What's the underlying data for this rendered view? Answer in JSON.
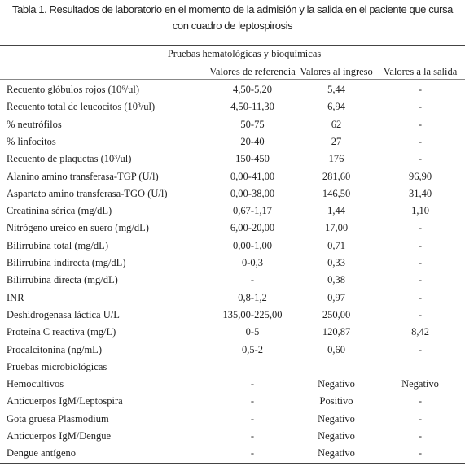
{
  "title": "Tabla 1. Resultados de laboratorio en el momento de la admisión y la salida en el paciente que cursa con cuadro de leptospirosis",
  "table": {
    "section": "Pruebas hematológicas y bioquímicas",
    "headers": [
      "Valores de referencia",
      "Valores al ingreso",
      "Valores a la salida"
    ],
    "rows": [
      [
        "Recuento glóbulos rojos (10⁶/ul)",
        "4,50-5,20",
        "5,44",
        "-"
      ],
      [
        "Recuento total de leucocitos (10³/ul)",
        "4,50-11,30",
        "6,94",
        "-"
      ],
      [
        "% neutrófilos",
        "50-75",
        "62",
        "-"
      ],
      [
        "% linfocitos",
        "20-40",
        "27",
        "-"
      ],
      [
        "Recuento de plaquetas (10³/ul)",
        "150-450",
        "176",
        "-"
      ],
      [
        "Alanino amino transferasa-TGP (U/l)",
        "0,00-41,00",
        "281,60",
        "96,90"
      ],
      [
        "Aspartato amino transferasa-TGO (U/l)",
        "0,00-38,00",
        "146,50",
        "31,40"
      ],
      [
        "Creatinina sérica (mg/dL)",
        "0,67-1,17",
        "1,44",
        "1,10"
      ],
      [
        "Nitrógeno ureico en suero (mg/dL)",
        "6,00-20,00",
        "17,00",
        "-"
      ],
      [
        "Bilirrubina total (mg/dL)",
        "0,00-1,00",
        "0,71",
        "-"
      ],
      [
        "Bilirrubina indirecta (mg/dL)",
        "0-0,3",
        "0,33",
        "-"
      ],
      [
        "Bilirrubina directa (mg/dL)",
        "-",
        "0,38",
        "-"
      ],
      [
        "INR",
        "0,8-1,2",
        "0,97",
        "-"
      ],
      [
        "Deshidrogenasa láctica U/L",
        "135,00-225,00",
        "250,00",
        "-"
      ],
      [
        "Proteína C reactiva (mg/L)",
        "0-5",
        "120,87",
        "8,42"
      ],
      [
        "Procalcitonina (ng/mL)",
        "0,5-2",
        "0,60",
        "-"
      ],
      [
        "Pruebas microbiológicas"
      ],
      [
        "Hemocultivos",
        "-",
        "Negativo",
        "Negativo"
      ],
      [
        "Anticuerpos IgM/Leptospira",
        "-",
        "Positivo",
        "-"
      ],
      [
        "Gota gruesa Plasmodium",
        "-",
        "Negativo",
        "-"
      ],
      [
        "Anticuerpos IgM/Dengue",
        "-",
        "Negativo",
        "-"
      ],
      [
        "Dengue antígeno",
        "-",
        "Negativo",
        "-"
      ]
    ]
  }
}
